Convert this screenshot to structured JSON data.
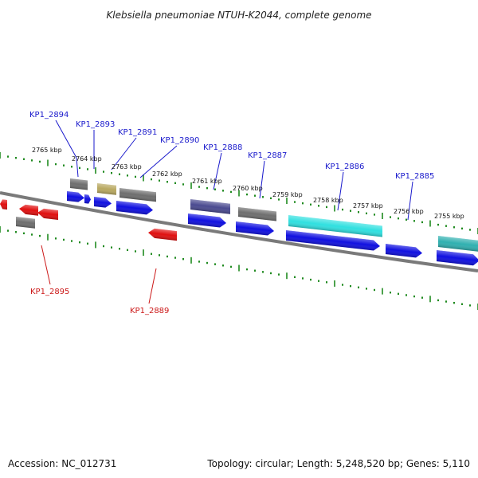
{
  "title": "Klebsiella pneumoniae NTUH-K2044, complete genome",
  "footer": {
    "accession": "Accession: NC_012731",
    "summary": "Topology: circular; Length: 5,248,520 bp; Genes: 5,110"
  },
  "colors": {
    "backbone": "#808080",
    "ticks": "#1f8a1f",
    "label_forward": "#1a1acc",
    "label_reverse": "#cc1a1a",
    "blue": "#1010e0",
    "red": "#e01010",
    "grey": "#6e6e6e",
    "khaki": "#b8a860",
    "navy": "#4a4a90",
    "cyan": "#30e0e0",
    "teal": "#30b0b0"
  },
  "scale": {
    "kbp_labels": [
      "2765 kbp",
      "2764 kbp",
      "2763 kbp",
      "2762 kbp",
      "2761 kbp",
      "2760 kbp",
      "2759 kbp",
      "2758 kbp",
      "2757 kbp",
      "2756 kbp",
      "2755 kbp"
    ]
  },
  "gene_labels": [
    {
      "id": "KP1_2894",
      "strand": "forward"
    },
    {
      "id": "KP1_2893",
      "strand": "forward"
    },
    {
      "id": "KP1_2891",
      "strand": "forward"
    },
    {
      "id": "KP1_2890",
      "strand": "forward"
    },
    {
      "id": "KP1_2888",
      "strand": "forward"
    },
    {
      "id": "KP1_2887",
      "strand": "forward"
    },
    {
      "id": "KP1_2886",
      "strand": "forward"
    },
    {
      "id": "KP1_2885",
      "strand": "forward"
    },
    {
      "id": "KP1_2895",
      "strand": "reverse"
    },
    {
      "id": "KP1_2889",
      "strand": "reverse"
    }
  ]
}
